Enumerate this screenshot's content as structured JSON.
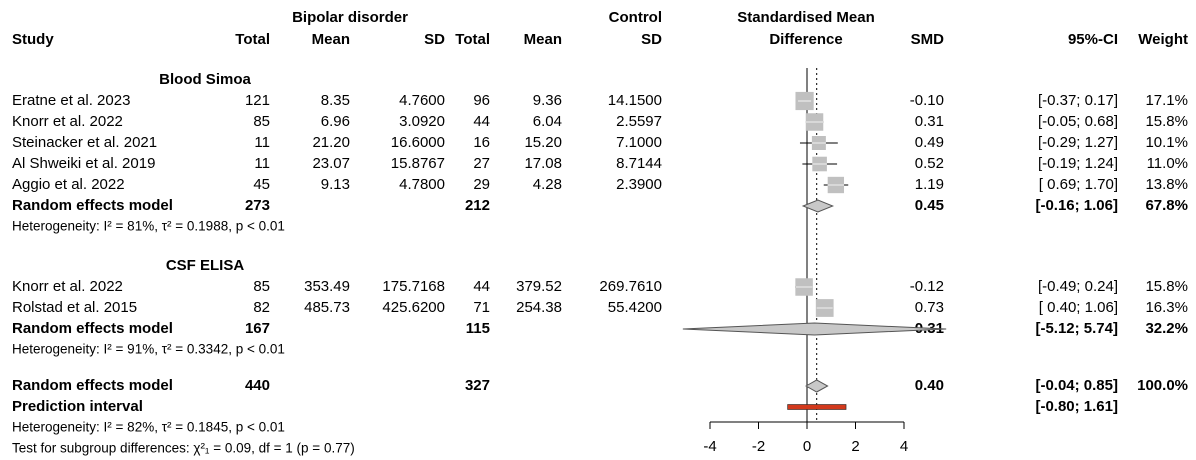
{
  "chart_data": {
    "type": "forest",
    "headers": {
      "study": "Study",
      "group1": "Bipolar disorder",
      "group2": "Control",
      "total1": "Total",
      "mean1": "Mean",
      "sd1": "SD",
      "total2": "Total",
      "mean2": "Mean",
      "sd2": "SD",
      "plot": [
        "Standardised Mean",
        "Difference"
      ],
      "smd": "SMD",
      "ci": "95%-CI",
      "weight": "Weight"
    },
    "groups": [
      {
        "title": "Blood Simoa",
        "studies": [
          {
            "study": "Eratne et al. 2023",
            "cells": [
              "121",
              "8.35",
              "4.7600",
              "96",
              "9.36",
              "14.1500"
            ],
            "smd": -0.1,
            "smd_label": "-0.10",
            "ci": [
              -0.37,
              0.17
            ],
            "ci_label": "[-0.37; 0.17]",
            "weight": 17.1,
            "weight_label": "17.1%"
          },
          {
            "study": "Knorr et al. 2022",
            "cells": [
              "85",
              "6.96",
              "3.0920",
              "44",
              "6.04",
              "2.5597"
            ],
            "smd": 0.31,
            "smd_label": "0.31",
            "ci": [
              -0.05,
              0.68
            ],
            "ci_label": "[-0.05; 0.68]",
            "weight": 15.8,
            "weight_label": "15.8%"
          },
          {
            "study": "Steinacker et al. 2021",
            "cells": [
              "11",
              "21.20",
              "16.6000",
              "16",
              "15.20",
              "7.1000"
            ],
            "smd": 0.49,
            "smd_label": "0.49",
            "ci": [
              -0.29,
              1.27
            ],
            "ci_label": "[-0.29; 1.27]",
            "weight": 10.1,
            "weight_label": "10.1%"
          },
          {
            "study": "Al Shweiki et al. 2019",
            "cells": [
              "11",
              "23.07",
              "15.8767",
              "27",
              "17.08",
              "8.7144"
            ],
            "smd": 0.52,
            "smd_label": "0.52",
            "ci": [
              -0.19,
              1.24
            ],
            "ci_label": "[-0.19; 1.24]",
            "weight": 11.0,
            "weight_label": "11.0%"
          },
          {
            "study": "Aggio et al. 2022",
            "cells": [
              "45",
              "9.13",
              "4.7800",
              "29",
              "4.28",
              "2.3900"
            ],
            "smd": 1.19,
            "smd_label": "1.19",
            "ci": [
              0.69,
              1.7
            ],
            "ci_label": "[ 0.69; 1.70]",
            "weight": 13.8,
            "weight_label": "13.8%"
          }
        ],
        "random": {
          "label": "Random effects model",
          "total1": 273,
          "total2": 212,
          "smd": 0.45,
          "smd_label": "0.45",
          "ci": [
            -0.16,
            1.06
          ],
          "ci_label": "[-0.16; 1.06]",
          "weight": 67.8,
          "weight_label": "67.8%"
        },
        "heterogeneity": "Heterogeneity: I² = 81%, τ² = 0.1988, p < 0.01"
      },
      {
        "title": "CSF ELISA",
        "studies": [
          {
            "study": "Knorr et al. 2022",
            "cells": [
              "85",
              "353.49",
              "175.7168",
              "44",
              "379.52",
              "269.7610"
            ],
            "smd": -0.12,
            "smd_label": "-0.12",
            "ci": [
              -0.49,
              0.24
            ],
            "ci_label": "[-0.49; 0.24]",
            "weight": 15.8,
            "weight_label": "15.8%"
          },
          {
            "study": "Rolstad et al. 2015",
            "cells": [
              "82",
              "485.73",
              "425.6200",
              "71",
              "254.38",
              "55.4200"
            ],
            "smd": 0.73,
            "smd_label": "0.73",
            "ci": [
              0.4,
              1.06
            ],
            "ci_label": "[ 0.40; 1.06]",
            "weight": 16.3,
            "weight_label": "16.3%"
          }
        ],
        "random": {
          "label": "Random effects model",
          "total1": 167,
          "total2": 115,
          "smd": 0.31,
          "smd_label": "0.31",
          "ci": [
            -5.12,
            5.74
          ],
          "ci_label": "[-5.12; 5.74]",
          "weight": 32.2,
          "weight_label": "32.2%"
        },
        "heterogeneity": "Heterogeneity: I² = 91%, τ² = 0.3342, p < 0.01"
      }
    ],
    "overall": {
      "label": "Random effects model",
      "total1": 440,
      "total2": 327,
      "smd": 0.4,
      "smd_label": "0.40",
      "ci": [
        -0.04,
        0.85
      ],
      "ci_label": "[-0.04; 0.85]",
      "weight": 100,
      "weight_label": "100.0%"
    },
    "prediction": {
      "label": "Prediction interval",
      "ci": [
        -0.8,
        1.61
      ],
      "ci_label": "[-0.80; 1.61]",
      "color": "#d2391c"
    },
    "heterogeneity": "Heterogeneity: I² = 82%, τ² = 0.1845, p < 0.01",
    "subgroup_test": "Test for subgroup differences: χ²₁ = 0.09, df = 1 (p = 0.77)",
    "xlim": [
      -4,
      4
    ],
    "xticks": [
      -4,
      -2,
      0,
      2,
      4
    ],
    "box_color": "#c0c0c0",
    "subgroup_color": "#a9a9a9",
    "diamond_color": "#c8c8c8"
  }
}
